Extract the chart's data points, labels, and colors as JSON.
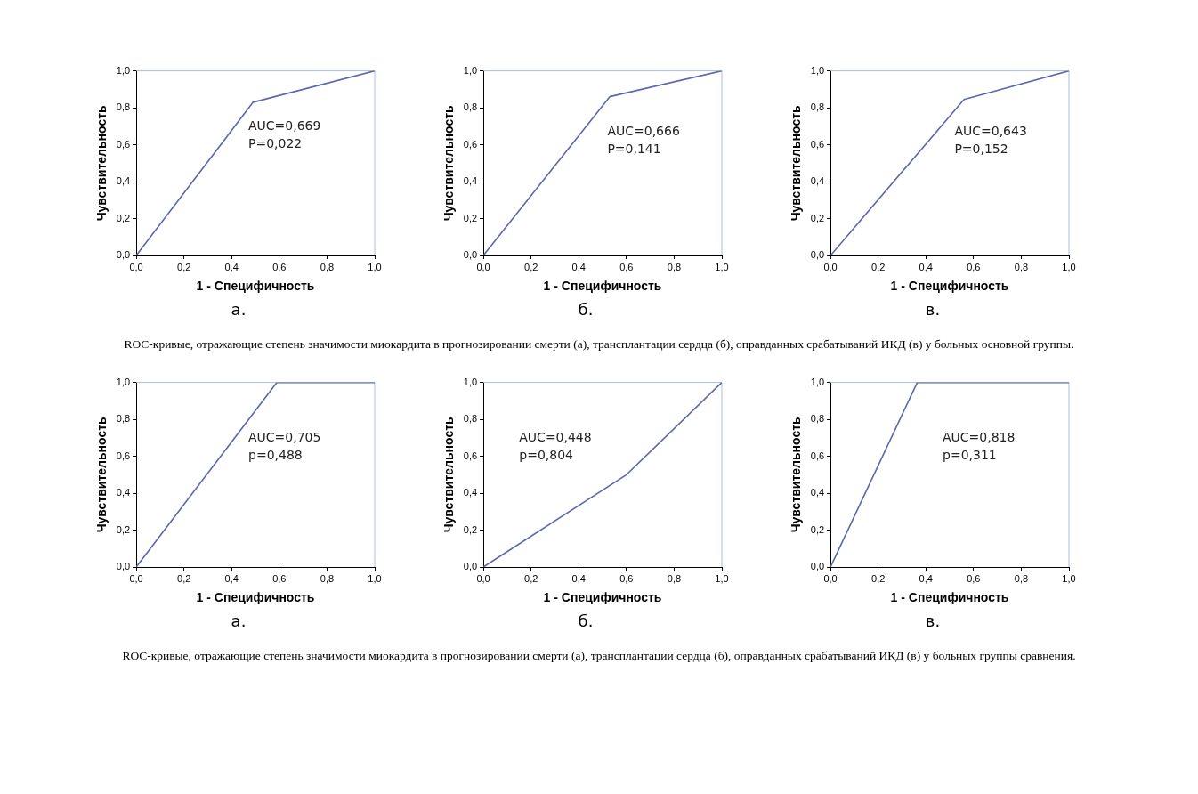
{
  "chart_data": [
    {
      "type": "line",
      "title": "а.",
      "xlabel": "1 - Специфичность",
      "ylabel": "Чувствительность",
      "xlim": [
        0,
        1
      ],
      "ylim": [
        0,
        1
      ],
      "xticks": [
        {
          "value": 0,
          "label": "0,0"
        },
        {
          "value": 0.2,
          "label": "0,2"
        },
        {
          "value": 0.4,
          "label": "0,4"
        },
        {
          "value": 0.6,
          "label": "0,6"
        },
        {
          "value": 0.8,
          "label": "0,8"
        },
        {
          "value": 1,
          "label": "1,0"
        }
      ],
      "yticks": [
        {
          "value": 0,
          "label": "0,0"
        },
        {
          "value": 0.2,
          "label": "0,2"
        },
        {
          "value": 0.4,
          "label": "0,4"
        },
        {
          "value": 0.6,
          "label": "0,6"
        },
        {
          "value": 0.8,
          "label": "0,8"
        },
        {
          "value": 1,
          "label": "1,0"
        }
      ],
      "grid": false,
      "legend": false,
      "marker": "none",
      "annotations": [
        "AUC=0,669",
        "P=0,022",
        "ROC-кривые, отражающие степень значимости миокардита в прогнозировании смерти (а), трансплантации сердца (б), оправданных срабатываний ИКД (в) у больных основной группы."
      ],
      "series": [
        {
          "color": "#5a68ad",
          "x": [
            0,
            0.49,
            1
          ],
          "values": [
            0,
            0.83,
            1
          ]
        }
      ]
    },
    {
      "type": "line",
      "title": "б.",
      "xlabel": "1 - Специфичность",
      "ylabel": "Чувствительность",
      "xlim": [
        0,
        1
      ],
      "ylim": [
        0,
        1
      ],
      "xticks": [
        {
          "value": 0,
          "label": "0,0"
        },
        {
          "value": 0.2,
          "label": "0,2"
        },
        {
          "value": 0.4,
          "label": "0,4"
        },
        {
          "value": 0.6,
          "label": "0,6"
        },
        {
          "value": 0.8,
          "label": "0,8"
        },
        {
          "value": 1,
          "label": "1,0"
        }
      ],
      "yticks": [
        {
          "value": 0,
          "label": "0,0"
        },
        {
          "value": 0.2,
          "label": "0,2"
        },
        {
          "value": 0.4,
          "label": "0,4"
        },
        {
          "value": 0.6,
          "label": "0,6"
        },
        {
          "value": 0.8,
          "label": "0,8"
        },
        {
          "value": 1,
          "label": "1,0"
        }
      ],
      "grid": false,
      "legend": false,
      "marker": "none",
      "annotations": [
        "AUC=0,666",
        "P=0,141"
      ],
      "series": [
        {
          "color": "#5a68ad",
          "x": [
            0,
            0.53,
            1
          ],
          "values": [
            0,
            0.86,
            1
          ]
        }
      ]
    },
    {
      "type": "line",
      "title": "в.",
      "xlabel": "1 - Специфичность",
      "ylabel": "Чувствительность",
      "xlim": [
        0,
        1
      ],
      "ylim": [
        0,
        1
      ],
      "xticks": [
        {
          "value": 0,
          "label": "0,0"
        },
        {
          "value": 0.2,
          "label": "0,2"
        },
        {
          "value": 0.4,
          "label": "0,4"
        },
        {
          "value": 0.6,
          "label": "0,6"
        },
        {
          "value": 0.8,
          "label": "0,8"
        },
        {
          "value": 1,
          "label": "1,0"
        }
      ],
      "yticks": [
        {
          "value": 0,
          "label": "0,0"
        },
        {
          "value": 0.2,
          "label": "0,2"
        },
        {
          "value": 0.4,
          "label": "0,4"
        },
        {
          "value": 0.6,
          "label": "0,6"
        },
        {
          "value": 0.8,
          "label": "0,8"
        },
        {
          "value": 1,
          "label": "1,0"
        }
      ],
      "grid": false,
      "legend": false,
      "marker": "none",
      "annotations": [
        "AUC=0,643",
        "P=0,152"
      ],
      "series": [
        {
          "color": "#5a68ad",
          "x": [
            0,
            0.56,
            1
          ],
          "values": [
            0,
            0.845,
            1
          ]
        }
      ]
    },
    {
      "type": "line",
      "title": "а.",
      "xlabel": "1 - Специфичность",
      "ylabel": "Чувствительность",
      "xlim": [
        0,
        1
      ],
      "ylim": [
        0,
        1
      ],
      "xticks": [
        {
          "value": 0,
          "label": "0,0"
        },
        {
          "value": 0.2,
          "label": "0,2"
        },
        {
          "value": 0.4,
          "label": "0,4"
        },
        {
          "value": 0.6,
          "label": "0,6"
        },
        {
          "value": 0.8,
          "label": "0,8"
        },
        {
          "value": 1,
          "label": "1,0"
        }
      ],
      "yticks": [
        {
          "value": 0,
          "label": "0,0"
        },
        {
          "value": 0.2,
          "label": "0,2"
        },
        {
          "value": 0.4,
          "label": "0,4"
        },
        {
          "value": 0.6,
          "label": "0,6"
        },
        {
          "value": 0.8,
          "label": "0,8"
        },
        {
          "value": 1,
          "label": "1,0"
        }
      ],
      "grid": false,
      "legend": false,
      "marker": "none",
      "annotations": [
        "AUC=0,705",
        "p=0,488",
        "ROC-кривые, отражающие степень значимости миокардита в прогнозировании смерти (а), трансплантации сердца (б), оправданных срабатываний ИКД (в) у больных группы сравнения."
      ],
      "series": [
        {
          "color": "#5a68ad",
          "x": [
            0,
            0.59,
            1
          ],
          "values": [
            0,
            1,
            1
          ]
        }
      ]
    },
    {
      "type": "line",
      "title": "б.",
      "xlabel": "1 - Специфичность",
      "ylabel": "Чувствительность",
      "xlim": [
        0,
        1
      ],
      "ylim": [
        0,
        1
      ],
      "xticks": [
        {
          "value": 0,
          "label": "0,0"
        },
        {
          "value": 0.2,
          "label": "0,2"
        },
        {
          "value": 0.4,
          "label": "0,4"
        },
        {
          "value": 0.6,
          "label": "0,6"
        },
        {
          "value": 0.8,
          "label": "0,8"
        },
        {
          "value": 1,
          "label": "1,0"
        }
      ],
      "yticks": [
        {
          "value": 0,
          "label": "0,0"
        },
        {
          "value": 0.2,
          "label": "0,2"
        },
        {
          "value": 0.4,
          "label": "0,4"
        },
        {
          "value": 0.6,
          "label": "0,6"
        },
        {
          "value": 0.8,
          "label": "0,8"
        },
        {
          "value": 1,
          "label": "1,0"
        }
      ],
      "grid": false,
      "legend": false,
      "marker": "none",
      "annotations": [
        "AUC=0,448",
        "p=0,804"
      ],
      "series": [
        {
          "color": "#5a68ad",
          "x": [
            0,
            0.6,
            1
          ],
          "values": [
            0,
            0.5,
            1
          ]
        }
      ]
    },
    {
      "type": "line",
      "title": "в.",
      "xlabel": "1 - Специфичность",
      "ylabel": "Чувствительность",
      "xlim": [
        0,
        1
      ],
      "ylim": [
        0,
        1
      ],
      "xticks": [
        {
          "value": 0,
          "label": "0,0"
        },
        {
          "value": 0.2,
          "label": "0,2"
        },
        {
          "value": 0.4,
          "label": "0,4"
        },
        {
          "value": 0.6,
          "label": "0,6"
        },
        {
          "value": 0.8,
          "label": "0,8"
        },
        {
          "value": 1,
          "label": "1,0"
        }
      ],
      "yticks": [
        {
          "value": 0,
          "label": "0,0"
        },
        {
          "value": 0.2,
          "label": "0,2"
        },
        {
          "value": 0.4,
          "label": "0,4"
        },
        {
          "value": 0.6,
          "label": "0,6"
        },
        {
          "value": 0.8,
          "label": "0,8"
        },
        {
          "value": 1,
          "label": "1,0"
        }
      ],
      "grid": false,
      "legend": false,
      "marker": "none",
      "annotations": [
        "AUC=0,818",
        "p=0,311"
      ],
      "series": [
        {
          "color": "#5a68ad",
          "x": [
            0,
            0.364,
            1
          ],
          "values": [
            0,
            1,
            1
          ]
        }
      ]
    }
  ]
}
